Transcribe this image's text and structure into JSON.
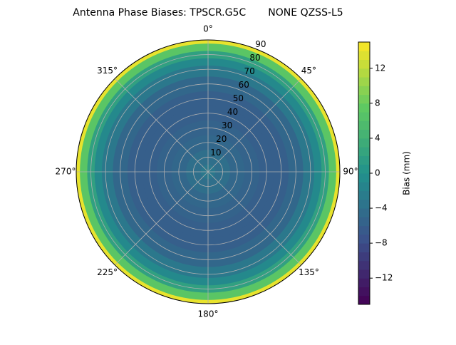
{
  "chart_data": {
    "type": "polar",
    "title": "Antenna Phase Biases: TPSCR.G5C       NONE QZSS-L5",
    "colorbar_label": "Bias (mm)",
    "colormap": "viridis",
    "zenith": [
      0,
      10,
      20,
      30,
      40,
      50,
      60,
      70,
      75,
      80,
      85,
      90
    ],
    "values": [
      -3,
      -4,
      -5,
      -5.5,
      -6,
      -6,
      -5,
      -3,
      -1,
      2,
      7,
      14
    ],
    "rlim": [
      0,
      90
    ],
    "rticks": [
      10,
      20,
      30,
      40,
      50,
      60,
      70,
      80,
      90
    ],
    "thetaticks": [
      {
        "value": 0,
        "label": "0°"
      },
      {
        "value": 45,
        "label": "45°"
      },
      {
        "value": 90,
        "label": "90°"
      },
      {
        "value": 135,
        "label": "135°"
      },
      {
        "value": 180,
        "label": "180°"
      },
      {
        "value": 225,
        "label": "225°"
      },
      {
        "value": 270,
        "label": "270°"
      },
      {
        "value": 315,
        "label": "315°"
      }
    ],
    "clim": [
      -15,
      15
    ],
    "cticks": [
      {
        "value": -12,
        "label": "−12"
      },
      {
        "value": -8,
        "label": "−8"
      },
      {
        "value": -4,
        "label": "−4"
      },
      0,
      4,
      8,
      12
    ],
    "grid": true
  }
}
